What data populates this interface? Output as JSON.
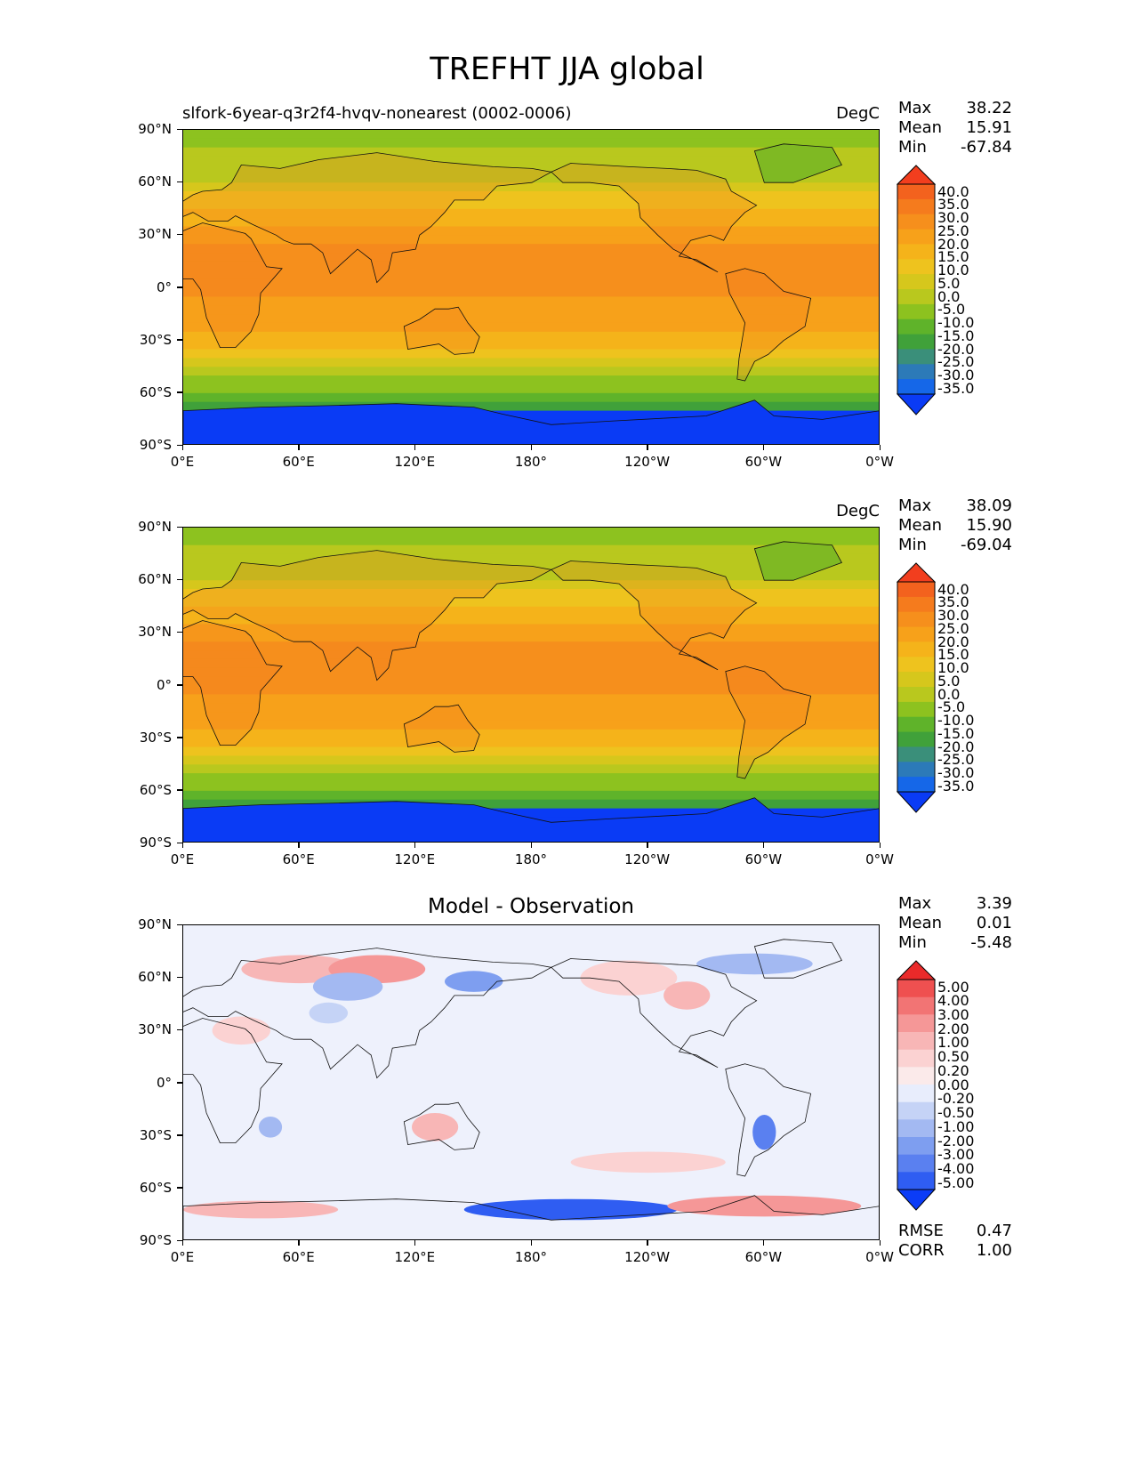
{
  "figure": {
    "title": "TREFHT JJA global"
  },
  "colors": {
    "temp_scale": [
      "#0a3bf5",
      "#1567e8",
      "#2c7ab8",
      "#3a8f7a",
      "#40a13a",
      "#5fb32a",
      "#8dc21f",
      "#b9c81e",
      "#d6c71c",
      "#eec31e",
      "#f5b31a",
      "#f7a11a",
      "#f68f1c",
      "#f57b1d",
      "#f3621e",
      "#f23e1e"
    ],
    "diff_scale": [
      "#0b3cf7",
      "#2f5df2",
      "#5a80f0",
      "#7e9ef0",
      "#a3b9f2",
      "#c5d3f6",
      "#e8edfc",
      "#fbeaea",
      "#fbd2d2",
      "#f8b6b6",
      "#f59797",
      "#f27474",
      "#ef5050",
      "#ea2a2a"
    ]
  },
  "xticks": [
    "0°E",
    "60°E",
    "120°E",
    "180°",
    "120°W",
    "60°W",
    "0°W"
  ],
  "yticks": [
    "90°N",
    "60°N",
    "30°N",
    "0°",
    "30°S",
    "60°S",
    "90°S"
  ],
  "panels": [
    {
      "title_left": "slfork-6year-q3r2f4-hvqv-nonearest (0002-0006)",
      "title_center": "",
      "units": "DegC",
      "stats": [
        {
          "label": "Max",
          "value": "38.22"
        },
        {
          "label": "Mean",
          "value": "15.91"
        },
        {
          "label": "Min",
          "value": "-67.84"
        }
      ],
      "extra_stats": [],
      "colorbar_labels": [
        "40.0",
        "35.0",
        "30.0",
        "25.0",
        "20.0",
        "15.0",
        "10.0",
        "5.0",
        "0.0",
        "-5.0",
        "-10.0",
        "-15.0",
        "-20.0",
        "-25.0",
        "-30.0",
        "-35.0"
      ],
      "kind": "temp"
    },
    {
      "title_left": "",
      "title_center": "",
      "units": "DegC",
      "stats": [
        {
          "label": "Max",
          "value": "38.09"
        },
        {
          "label": "Mean",
          "value": "15.90"
        },
        {
          "label": "Min",
          "value": "-69.04"
        }
      ],
      "extra_stats": [],
      "colorbar_labels": [
        "40.0",
        "35.0",
        "30.0",
        "25.0",
        "20.0",
        "15.0",
        "10.0",
        "5.0",
        "0.0",
        "-5.0",
        "-10.0",
        "-15.0",
        "-20.0",
        "-25.0",
        "-30.0",
        "-35.0"
      ],
      "kind": "temp"
    },
    {
      "title_left": "",
      "title_center": "Model - Observation",
      "units": "",
      "stats": [
        {
          "label": "Max",
          "value": "3.39"
        },
        {
          "label": "Mean",
          "value": "0.01"
        },
        {
          "label": "Min",
          "value": "-5.48"
        }
      ],
      "extra_stats": [
        {
          "label": "RMSE",
          "value": "0.47"
        },
        {
          "label": "CORR",
          "value": "1.00"
        }
      ],
      "colorbar_labels": [
        "5.00",
        "4.00",
        "3.00",
        "2.00",
        "1.00",
        "0.50",
        "0.20",
        "0.00",
        "-0.20",
        "-0.50",
        "-1.00",
        "-2.00",
        "-3.00",
        "-4.00",
        "-5.00"
      ],
      "kind": "diff"
    }
  ],
  "chart_data": {
    "type": "heatmap",
    "title": "TREFHT JJA global",
    "x_range": [
      "0°E",
      "0°W"
    ],
    "y_range": [
      "90°S",
      "90°N"
    ],
    "panels": [
      {
        "name": "slfork-6year-q3r2f4-hvqv-nonearest (0002-0006)",
        "units": "DegC",
        "max": 38.22,
        "mean": 15.91,
        "min": -67.84,
        "levels": [
          -35,
          -30,
          -25,
          -20,
          -15,
          -10,
          -5,
          0,
          5,
          10,
          15,
          20,
          25,
          30,
          35,
          40
        ]
      },
      {
        "name": "",
        "units": "DegC",
        "max": 38.09,
        "mean": 15.9,
        "min": -69.04,
        "levels": [
          -35,
          -30,
          -25,
          -20,
          -15,
          -10,
          -5,
          0,
          5,
          10,
          15,
          20,
          25,
          30,
          35,
          40
        ]
      },
      {
        "name": "Model - Observation",
        "max": 3.39,
        "mean": 0.01,
        "min": -5.48,
        "rmse": 0.47,
        "corr": 1.0,
        "levels": [
          -5,
          -4,
          -3,
          -2,
          -1,
          -0.5,
          -0.2,
          0,
          0.2,
          0.5,
          1,
          2,
          3,
          4,
          5
        ]
      }
    ]
  }
}
